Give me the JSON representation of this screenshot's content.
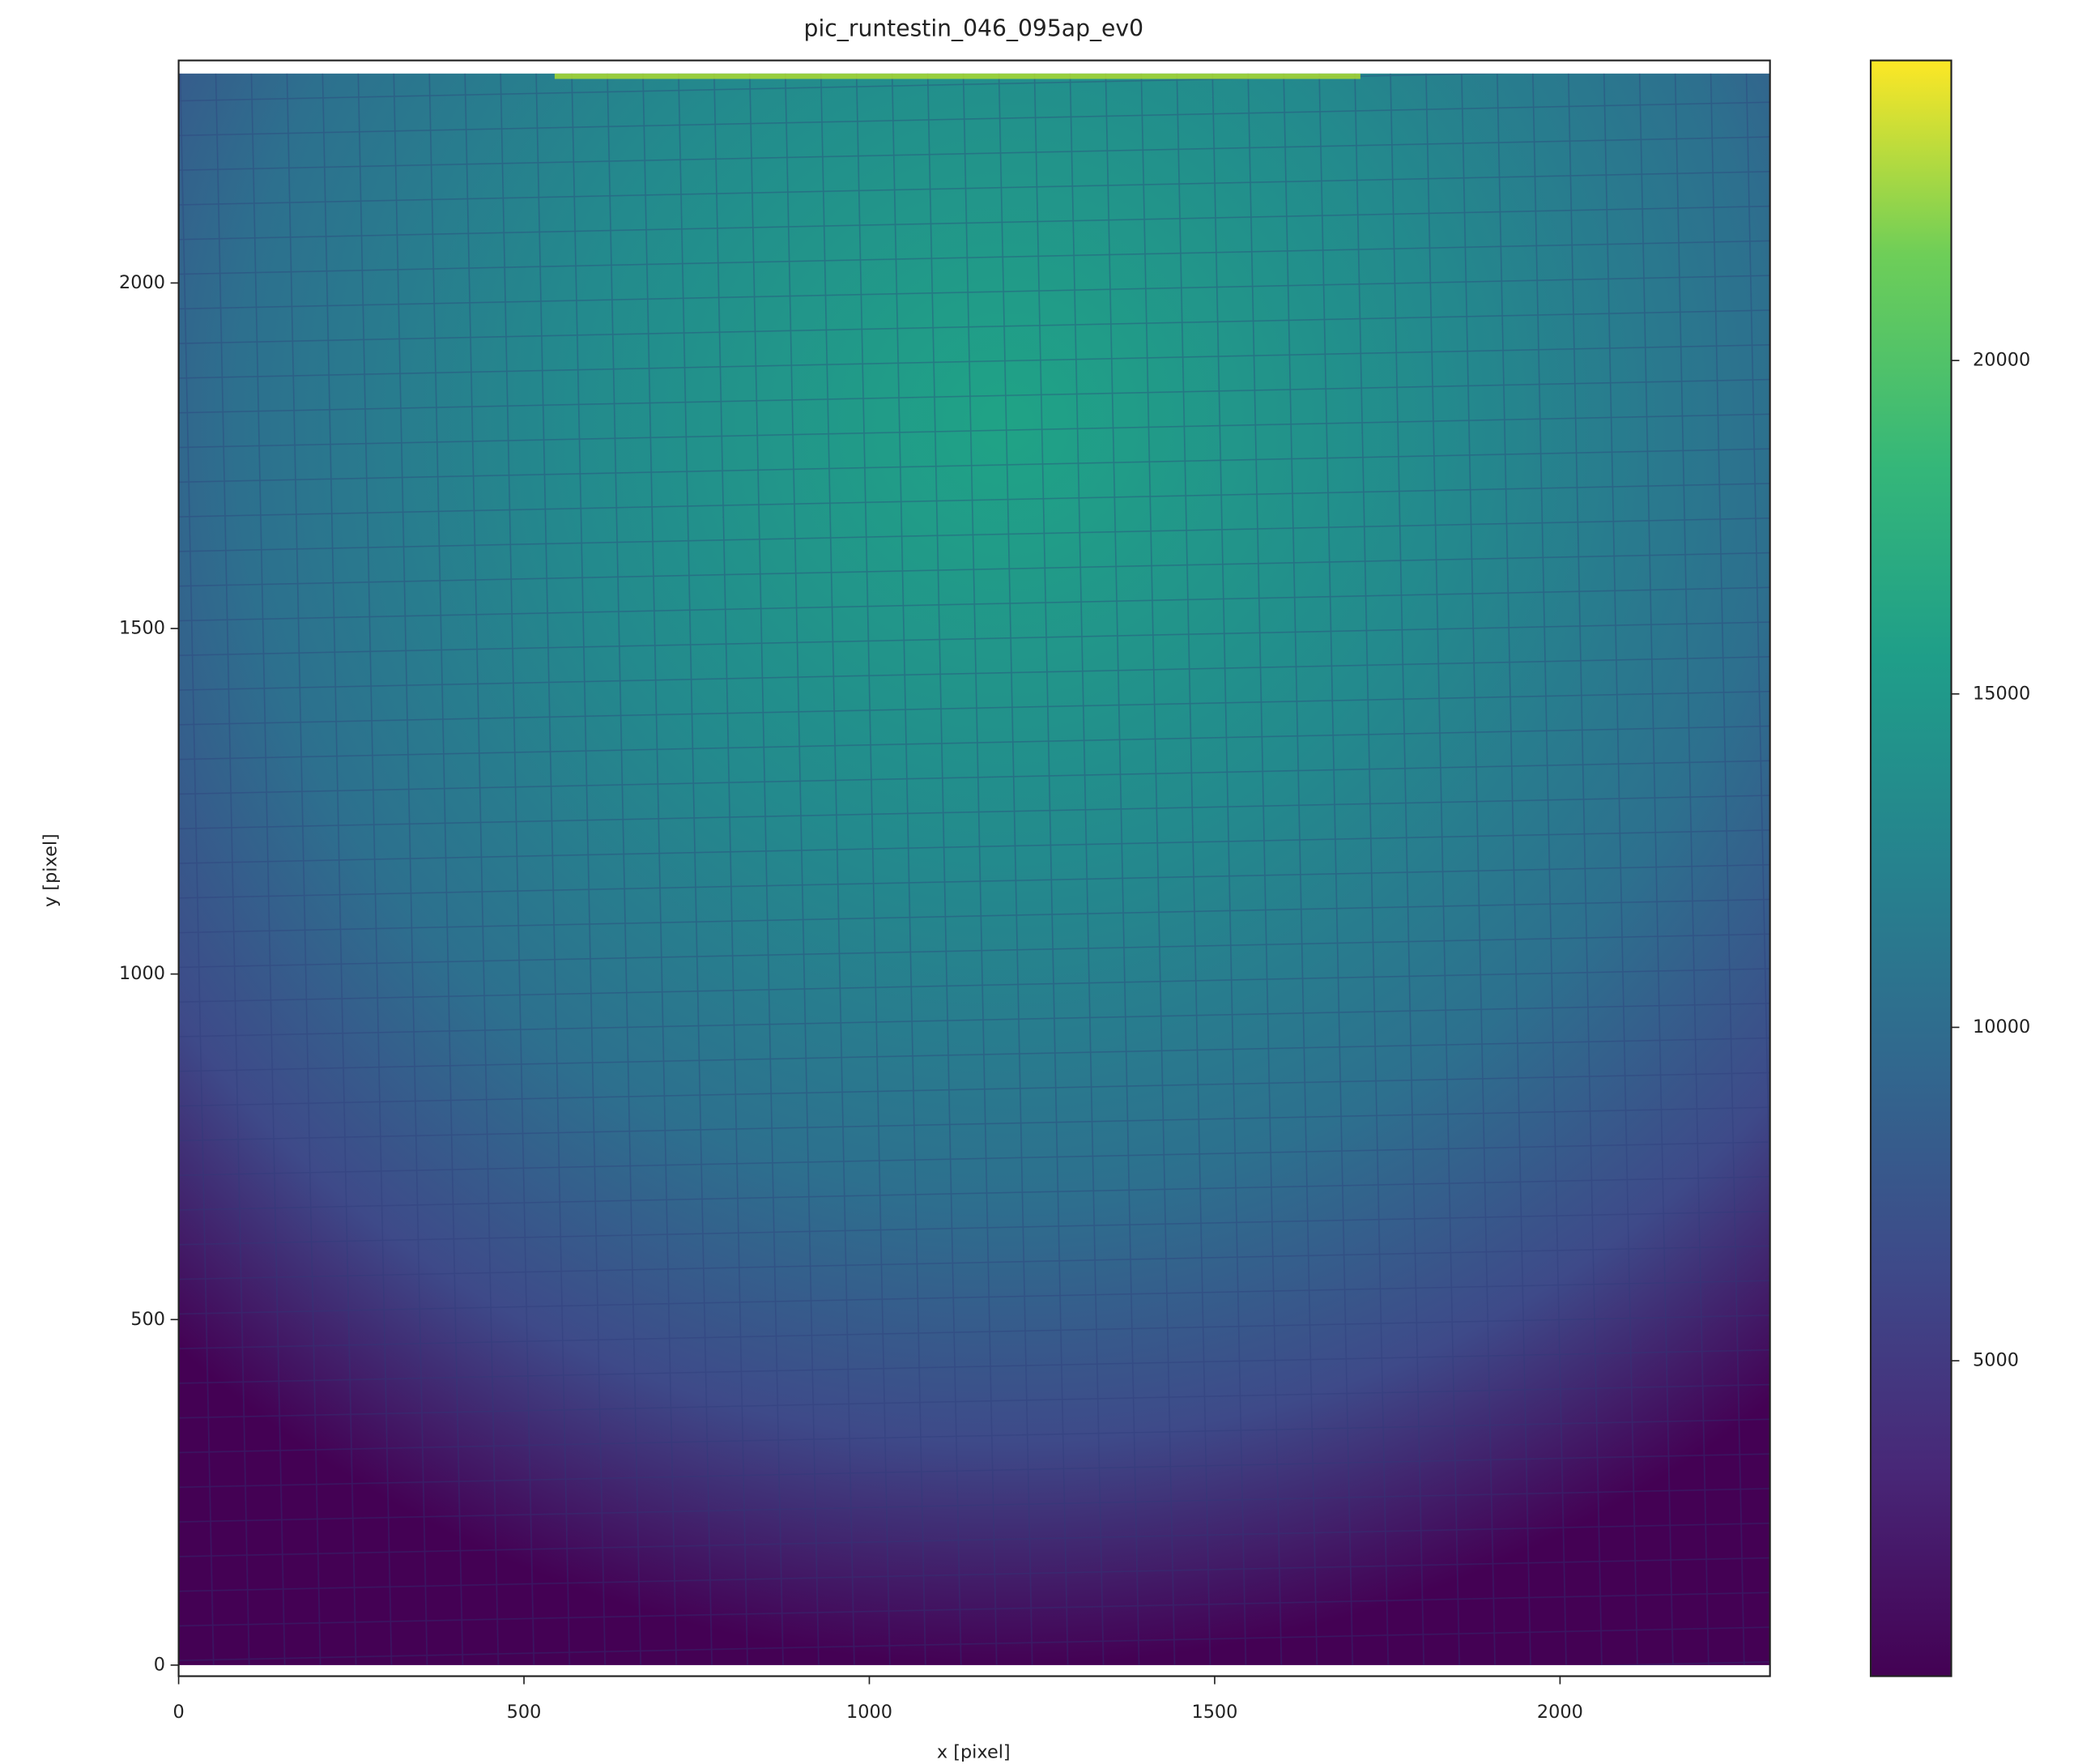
{
  "chart_data": {
    "type": "image",
    "title": "pic_runtestin_046_095ap_ev0",
    "xlabel": "x [pixel]",
    "ylabel": "y [pixel]",
    "xlim": [
      0,
      2304
    ],
    "ylim": [
      -16,
      2322
    ],
    "xticks": [
      0,
      500,
      1000,
      1500,
      2000
    ],
    "yticks": [
      0,
      500,
      1000,
      1500,
      2000
    ],
    "cmap": "viridis",
    "clim": [
      270,
      24500
    ],
    "cticks": [
      5000,
      10000,
      15000,
      20000
    ]
  }
}
